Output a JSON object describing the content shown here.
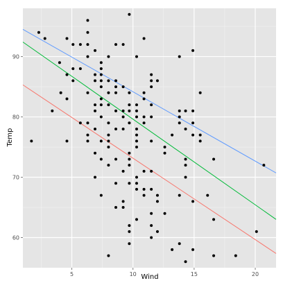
{
  "chart_data": {
    "type": "scatter",
    "xlabel": "Wind",
    "ylabel": "Temp",
    "xlim": [
      1.0,
      21.7
    ],
    "ylim": [
      55,
      98
    ],
    "x_ticks": [
      5,
      10,
      15,
      20
    ],
    "y_ticks": [
      60,
      70,
      80,
      90
    ],
    "grid": true,
    "background": "#e5e5e5",
    "points": [
      [
        1.7,
        76
      ],
      [
        2.3,
        94
      ],
      [
        2.8,
        93
      ],
      [
        3.4,
        81
      ],
      [
        4.0,
        89
      ],
      [
        4.1,
        84
      ],
      [
        4.6,
        93
      ],
      [
        4.6,
        76
      ],
      [
        4.6,
        87
      ],
      [
        4.6,
        83
      ],
      [
        5.1,
        86
      ],
      [
        5.1,
        88
      ],
      [
        5.1,
        92
      ],
      [
        5.7,
        92
      ],
      [
        5.7,
        79
      ],
      [
        5.7,
        88
      ],
      [
        6.3,
        92
      ],
      [
        6.3,
        94
      ],
      [
        6.3,
        96
      ],
      [
        6.3,
        84
      ],
      [
        6.3,
        90
      ],
      [
        6.3,
        79
      ],
      [
        6.3,
        77
      ],
      [
        6.3,
        76
      ],
      [
        6.9,
        91
      ],
      [
        6.9,
        74
      ],
      [
        6.9,
        78
      ],
      [
        6.9,
        70
      ],
      [
        6.9,
        86
      ],
      [
        6.9,
        81
      ],
      [
        6.9,
        82
      ],
      [
        6.9,
        87
      ],
      [
        7.4,
        89
      ],
      [
        7.4,
        88
      ],
      [
        7.4,
        87
      ],
      [
        7.4,
        86
      ],
      [
        7.4,
        85
      ],
      [
        7.4,
        83
      ],
      [
        7.4,
        82
      ],
      [
        7.4,
        80
      ],
      [
        7.4,
        76
      ],
      [
        7.4,
        73
      ],
      [
        7.4,
        67
      ],
      [
        8.0,
        90
      ],
      [
        8.0,
        86
      ],
      [
        8.0,
        84
      ],
      [
        8.0,
        82
      ],
      [
        8.0,
        79
      ],
      [
        8.0,
        77
      ],
      [
        8.0,
        76
      ],
      [
        8.0,
        75
      ],
      [
        8.0,
        72
      ],
      [
        8.0,
        57
      ],
      [
        8.6,
        92
      ],
      [
        8.6,
        86
      ],
      [
        8.6,
        85
      ],
      [
        8.6,
        84
      ],
      [
        8.6,
        81
      ],
      [
        8.6,
        78
      ],
      [
        8.6,
        73
      ],
      [
        8.6,
        69
      ],
      [
        8.6,
        65
      ],
      [
        9.2,
        92
      ],
      [
        9.2,
        85
      ],
      [
        9.2,
        81
      ],
      [
        9.2,
        80
      ],
      [
        9.2,
        71
      ],
      [
        9.2,
        66
      ],
      [
        9.2,
        65
      ],
      [
        9.2,
        78
      ],
      [
        9.7,
        97
      ],
      [
        9.7,
        84
      ],
      [
        9.7,
        82
      ],
      [
        9.7,
        81
      ],
      [
        9.7,
        79
      ],
      [
        9.7,
        74
      ],
      [
        9.7,
        73
      ],
      [
        9.7,
        72
      ],
      [
        9.7,
        69
      ],
      [
        9.7,
        62
      ],
      [
        9.7,
        61
      ],
      [
        9.7,
        59
      ],
      [
        10.3,
        90
      ],
      [
        10.3,
        82
      ],
      [
        10.3,
        81
      ],
      [
        10.3,
        80
      ],
      [
        10.3,
        78
      ],
      [
        10.3,
        77
      ],
      [
        10.3,
        76
      ],
      [
        10.3,
        75
      ],
      [
        10.3,
        70
      ],
      [
        10.3,
        69
      ],
      [
        10.3,
        68
      ],
      [
        10.3,
        63
      ],
      [
        10.9,
        93
      ],
      [
        10.9,
        84
      ],
      [
        10.9,
        83
      ],
      [
        10.9,
        80
      ],
      [
        10.9,
        79
      ],
      [
        10.9,
        71
      ],
      [
        10.9,
        68
      ],
      [
        10.9,
        67
      ],
      [
        11.5,
        87
      ],
      [
        11.5,
        86
      ],
      [
        11.5,
        85
      ],
      [
        11.5,
        82
      ],
      [
        11.5,
        80
      ],
      [
        11.5,
        76
      ],
      [
        11.5,
        71
      ],
      [
        11.5,
        68
      ],
      [
        11.5,
        64
      ],
      [
        11.5,
        62
      ],
      [
        11.5,
        60
      ],
      [
        12.0,
        86
      ],
      [
        12.0,
        67
      ],
      [
        12.0,
        66
      ],
      [
        12.0,
        61
      ],
      [
        12.6,
        75
      ],
      [
        12.6,
        74
      ],
      [
        12.6,
        64
      ],
      [
        13.2,
        77
      ],
      [
        13.2,
        58
      ],
      [
        13.8,
        90
      ],
      [
        13.8,
        81
      ],
      [
        13.8,
        80
      ],
      [
        13.8,
        79
      ],
      [
        13.8,
        67
      ],
      [
        13.8,
        59
      ],
      [
        14.3,
        81
      ],
      [
        14.3,
        78
      ],
      [
        14.3,
        73
      ],
      [
        14.3,
        72
      ],
      [
        14.3,
        70
      ],
      [
        14.3,
        56
      ],
      [
        14.9,
        91
      ],
      [
        14.9,
        81
      ],
      [
        14.9,
        79
      ],
      [
        14.9,
        77
      ],
      [
        14.9,
        66
      ],
      [
        14.9,
        58
      ],
      [
        15.5,
        84
      ],
      [
        15.5,
        77
      ],
      [
        15.5,
        76
      ],
      [
        16.1,
        67
      ],
      [
        16.6,
        73
      ],
      [
        16.6,
        63
      ],
      [
        16.6,
        57
      ],
      [
        18.4,
        57
      ],
      [
        20.1,
        61
      ],
      [
        20.7,
        72
      ]
    ],
    "lines": [
      {
        "color": "#619CFF",
        "intercept": 95.67,
        "slope": -1.15
      },
      {
        "color": "#00BA38",
        "intercept": 93.83,
        "slope": -1.42
      },
      {
        "color": "#F8766D",
        "intercept": 86.66,
        "slope": -1.35
      }
    ]
  }
}
